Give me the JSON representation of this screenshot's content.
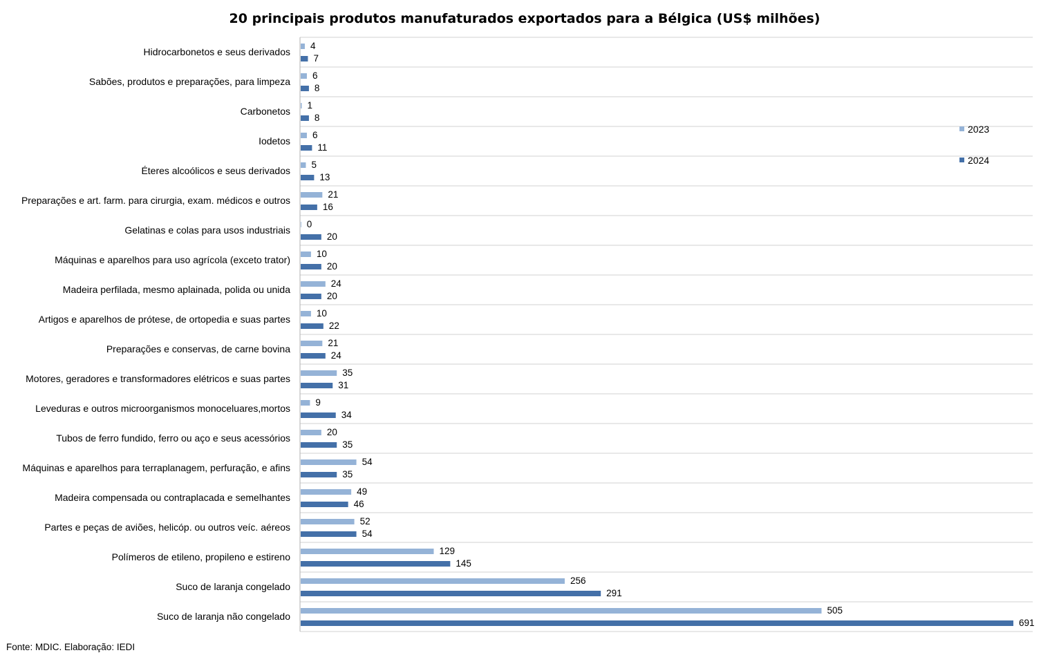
{
  "chart_data": {
    "type": "bar",
    "orientation": "horizontal",
    "title": "20 principais produtos manufaturados exportados para a Bélgica  (US$ milhões)",
    "categories": [
      "Hidrocarbonetos e seus derivados",
      "Sabões, produtos e preparações, para limpeza",
      "Carbonetos",
      "Iodetos",
      "Éteres alcoólicos e seus derivados",
      "Preparações e art. farm. para cirurgia, exam. médicos e outros",
      "Gelatinas e colas para usos industriais",
      "Máquinas e aparelhos para uso agrícola (exceto trator)",
      "Madeira perfilada, mesmo aplainada, polida ou unida",
      "Artigos e aparelhos de prótese, de ortopedia e suas partes",
      "Preparações e conservas, de carne bovina",
      "Motores, geradores e transformadores elétricos e suas partes",
      "Leveduras e outros microorganismos monoceluares,mortos",
      "Tubos de ferro fundido, ferro ou aço e seus acessórios",
      "Máquinas e aparelhos para terraplanagem, perfuração, e afins",
      "Madeira compensada ou contraplacada e semelhantes",
      "Partes e peças de aviões, helicóp. ou outros veíc. aéreos",
      "Polímeros de etileno, propileno e estireno",
      "Suco de laranja congelado",
      "Suco de laranja não congelado"
    ],
    "series": [
      {
        "name": "2023",
        "color": "#95b3d7",
        "values": [
          4,
          6,
          1,
          6,
          5,
          21,
          0,
          10,
          24,
          10,
          21,
          35,
          9,
          20,
          54,
          49,
          52,
          129,
          256,
          505
        ]
      },
      {
        "name": "2024",
        "color": "#4470a8",
        "values": [
          7,
          8,
          8,
          11,
          13,
          16,
          20,
          20,
          20,
          22,
          24,
          31,
          34,
          35,
          35,
          46,
          54,
          145,
          291,
          691
        ]
      }
    ],
    "xlim": [
      0,
      710
    ],
    "grid": "horizontal separators between categories",
    "legend": "right"
  },
  "source": "Fonte: MDIC. Elaboração: IEDI"
}
